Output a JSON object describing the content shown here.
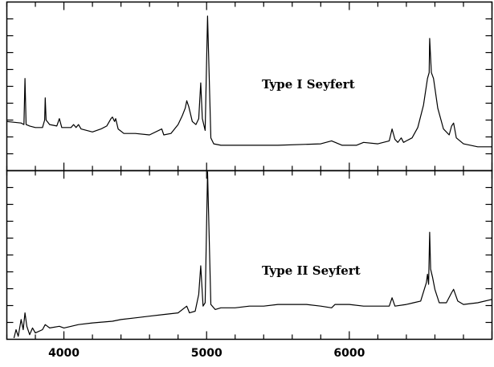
{
  "chart_data": {
    "type": "line",
    "xlim": [
      3600,
      7000
    ],
    "x_ticks": [
      4000,
      5000,
      6000
    ],
    "grid": false,
    "legend": "none",
    "panels": [
      {
        "annotation": "Type I Seyfert",
        "ylim": [
          0,
          1
        ],
        "series": [
          {
            "x": [
              3600,
              3700,
              3720,
              3727,
              3735,
              3760,
              3800,
              3850,
              3865,
              3869,
              3875,
              3900,
              3950,
              3968,
              3985,
              4050,
              4068,
              4085,
              4102,
              4120,
              4200,
              4260,
              4300,
              4330,
              4340,
              4355,
              4363,
              4380,
              4420,
              4500,
              4600,
              4686,
              4700,
              4750,
              4800,
              4830,
              4850,
              4861,
              4875,
              4900,
              4925,
              4945,
              4959,
              4970,
              4990,
              5007,
              5030,
              5050,
              5100,
              5300,
              5500,
              5800,
              5876,
              5950,
              6050,
              6100,
              6200,
              6280,
              6300,
              6320,
              6340,
              6364,
              6380,
              6400,
              6440,
              6480,
              6520,
              6548,
              6560,
              6563,
              6575,
              6590,
              6620,
              6660,
              6700,
              6717,
              6731,
              6750,
              6800,
              6900,
              7000
            ],
            "y": [
              0.29,
              0.28,
              0.27,
              0.58,
              0.27,
              0.26,
              0.25,
              0.25,
              0.3,
              0.45,
              0.3,
              0.27,
              0.26,
              0.31,
              0.25,
              0.25,
              0.27,
              0.25,
              0.27,
              0.24,
              0.22,
              0.24,
              0.26,
              0.31,
              0.32,
              0.29,
              0.31,
              0.24,
              0.21,
              0.21,
              0.2,
              0.24,
              0.2,
              0.21,
              0.27,
              0.33,
              0.38,
              0.43,
              0.39,
              0.29,
              0.27,
              0.31,
              0.55,
              0.31,
              0.23,
              1.0,
              0.18,
              0.14,
              0.13,
              0.13,
              0.13,
              0.14,
              0.16,
              0.13,
              0.13,
              0.15,
              0.14,
              0.16,
              0.24,
              0.17,
              0.15,
              0.18,
              0.15,
              0.16,
              0.18,
              0.25,
              0.4,
              0.58,
              0.62,
              0.85,
              0.62,
              0.58,
              0.38,
              0.24,
              0.2,
              0.26,
              0.28,
              0.18,
              0.14,
              0.12,
              0.12
            ]
          }
        ]
      },
      {
        "annotation": "Type II Seyfert",
        "ylim": [
          0,
          1
        ],
        "series": [
          {
            "x": [
              3650,
              3665,
              3680,
              3700,
              3715,
              3727,
              3740,
              3760,
              3780,
              3800,
              3850,
              3869,
              3900,
              3968,
              4000,
              4102,
              4200,
              4340,
              4400,
              4500,
              4600,
              4700,
              4800,
              4861,
              4880,
              4920,
              4945,
              4959,
              4975,
              4990,
              5007,
              5030,
              5060,
              5100,
              5200,
              5300,
              5400,
              5500,
              5600,
              5700,
              5800,
              5876,
              5900,
              6000,
              6100,
              6200,
              6280,
              6300,
              6320,
              6400,
              6450,
              6500,
              6540,
              6548,
              6556,
              6563,
              6570,
              6584,
              6600,
              6630,
              6680,
              6717,
              6731,
              6760,
              6800,
              6900,
              7000
            ],
            "y": [
              0.01,
              0.06,
              0.02,
              0.12,
              0.06,
              0.16,
              0.08,
              0.03,
              0.07,
              0.04,
              0.06,
              0.09,
              0.07,
              0.08,
              0.07,
              0.09,
              0.1,
              0.11,
              0.12,
              0.13,
              0.14,
              0.15,
              0.16,
              0.2,
              0.16,
              0.17,
              0.27,
              0.44,
              0.2,
              0.22,
              1.0,
              0.21,
              0.18,
              0.19,
              0.19,
              0.2,
              0.2,
              0.21,
              0.21,
              0.21,
              0.2,
              0.19,
              0.21,
              0.21,
              0.2,
              0.2,
              0.2,
              0.25,
              0.2,
              0.21,
              0.22,
              0.23,
              0.34,
              0.39,
              0.33,
              0.64,
              0.42,
              0.37,
              0.3,
              0.22,
              0.22,
              0.28,
              0.3,
              0.23,
              0.21,
              0.22,
              0.24
            ]
          }
        ]
      }
    ]
  }
}
